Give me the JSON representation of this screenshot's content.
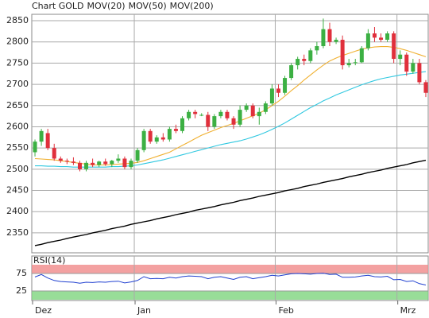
{
  "chart_data": [
    {
      "type": "candlestick",
      "title": "Chart GOLD",
      "title_color": "#d62728",
      "up_color": "#3cb043",
      "down_color": "#e0303c",
      "categories": [
        "Dez",
        null,
        null,
        null,
        null,
        null,
        null,
        null,
        null,
        null,
        null,
        null,
        null,
        null,
        null,
        null,
        "Jan",
        null,
        null,
        null,
        null,
        null,
        null,
        null,
        null,
        null,
        null,
        null,
        null,
        null,
        null,
        null,
        null,
        null,
        null,
        null,
        null,
        null,
        "Feb",
        null,
        null,
        null,
        null,
        null,
        null,
        null,
        null,
        null,
        null,
        null,
        null,
        null,
        null,
        null,
        null,
        null,
        null,
        "Mrz",
        null,
        null,
        null,
        null
      ],
      "open": [
        2540,
        2565,
        2585,
        2550,
        2525,
        2520,
        2518,
        2515,
        2500,
        2515,
        2510,
        2518,
        2512,
        2520,
        2525,
        2505,
        2520,
        2545,
        2590,
        2565,
        2575,
        2570,
        2595,
        2590,
        2620,
        2635,
        2628,
        2628,
        2600,
        2625,
        2635,
        2620,
        2605,
        2640,
        2650,
        2625,
        2635,
        2655,
        2690,
        2680,
        2715,
        2745,
        2760,
        2755,
        2780,
        2790,
        2830,
        2800,
        2805,
        2745,
        2750,
        2752,
        2785,
        2820,
        2810,
        2805,
        2820,
        2760,
        2770,
        2730,
        2750,
        2705
      ],
      "high": [
        2570,
        2595,
        2595,
        2560,
        2530,
        2525,
        2528,
        2520,
        2520,
        2525,
        2520,
        2525,
        2522,
        2535,
        2530,
        2525,
        2550,
        2595,
        2595,
        2580,
        2585,
        2600,
        2605,
        2625,
        2640,
        2640,
        2632,
        2635,
        2630,
        2640,
        2640,
        2625,
        2650,
        2655,
        2655,
        2645,
        2660,
        2700,
        2700,
        2720,
        2750,
        2765,
        2770,
        2785,
        2800,
        2855,
        2845,
        2810,
        2815,
        2760,
        2760,
        2790,
        2830,
        2835,
        2820,
        2825,
        2825,
        2780,
        2775,
        2760,
        2760,
        2710
      ],
      "low": [
        2530,
        2555,
        2545,
        2520,
        2515,
        2512,
        2510,
        2495,
        2495,
        2505,
        2505,
        2508,
        2505,
        2515,
        2500,
        2500,
        2515,
        2540,
        2560,
        2560,
        2565,
        2565,
        2585,
        2585,
        2615,
        2620,
        2625,
        2590,
        2595,
        2620,
        2615,
        2595,
        2600,
        2635,
        2620,
        2605,
        2630,
        2650,
        2670,
        2675,
        2710,
        2735,
        2745,
        2750,
        2770,
        2785,
        2790,
        2795,
        2735,
        2740,
        2745,
        2750,
        2780,
        2800,
        2800,
        2800,
        2750,
        2745,
        2720,
        2725,
        2700,
        2670
      ],
      "close": [
        2565,
        2590,
        2550,
        2525,
        2520,
        2518,
        2515,
        2500,
        2515,
        2510,
        2518,
        2512,
        2520,
        2525,
        2505,
        2520,
        2545,
        2590,
        2565,
        2575,
        2570,
        2595,
        2590,
        2620,
        2635,
        2630,
        2628,
        2600,
        2625,
        2635,
        2620,
        2605,
        2640,
        2650,
        2625,
        2635,
        2655,
        2690,
        2680,
        2715,
        2745,
        2760,
        2755,
        2780,
        2790,
        2830,
        2800,
        2805,
        2745,
        2750,
        2752,
        2785,
        2820,
        2810,
        2805,
        2820,
        2760,
        2770,
        2730,
        2750,
        2705,
        2680
      ],
      "series": [
        {
          "name": "MOV(20)",
          "color": "#f0b030",
          "values": [
            2525,
            2524,
            2523,
            2522,
            2520,
            2518,
            2516,
            2514,
            2512,
            2510,
            2510,
            2510,
            2511,
            2512,
            2513,
            2514,
            2516,
            2520,
            2525,
            2530,
            2535,
            2540,
            2548,
            2556,
            2564,
            2572,
            2580,
            2586,
            2592,
            2598,
            2603,
            2608,
            2614,
            2620,
            2626,
            2632,
            2640,
            2650,
            2660,
            2672,
            2685,
            2697,
            2710,
            2722,
            2734,
            2745,
            2755,
            2762,
            2768,
            2773,
            2778,
            2783,
            2786,
            2788,
            2789,
            2789,
            2787,
            2784,
            2780,
            2775,
            2770,
            2765
          ]
        },
        {
          "name": "MOV(50)",
          "color": "#30c8e0",
          "values": [
            2508,
            2508,
            2507,
            2507,
            2506,
            2506,
            2505,
            2505,
            2505,
            2505,
            2505,
            2505,
            2506,
            2506,
            2507,
            2508,
            2510,
            2513,
            2516,
            2519,
            2522,
            2526,
            2530,
            2534,
            2538,
            2542,
            2546,
            2550,
            2554,
            2558,
            2561,
            2564,
            2567,
            2571,
            2576,
            2581,
            2587,
            2594,
            2601,
            2609,
            2618,
            2627,
            2636,
            2645,
            2653,
            2661,
            2668,
            2675,
            2681,
            2687,
            2693,
            2699,
            2704,
            2709,
            2713,
            2716,
            2719,
            2722,
            2724,
            2726,
            2728,
            2730
          ]
        },
        {
          "name": "MOV(200)",
          "color": "#000000",
          "values": [
            2320,
            2323,
            2327,
            2330,
            2333,
            2337,
            2340,
            2343,
            2346,
            2350,
            2353,
            2356,
            2360,
            2363,
            2366,
            2370,
            2373,
            2376,
            2379,
            2383,
            2386,
            2389,
            2393,
            2396,
            2399,
            2403,
            2406,
            2409,
            2412,
            2416,
            2419,
            2422,
            2426,
            2429,
            2432,
            2436,
            2439,
            2442,
            2445,
            2449,
            2452,
            2455,
            2459,
            2462,
            2465,
            2469,
            2472,
            2475,
            2478,
            2482,
            2485,
            2488,
            2492,
            2495,
            2498,
            2502,
            2505,
            2508,
            2511,
            2515,
            2518,
            2521
          ]
        }
      ],
      "ylim": [
        2303,
        2865
      ],
      "yticks": [
        2350,
        2400,
        2450,
        2500,
        2550,
        2600,
        2650,
        2700,
        2750,
        2800,
        2850
      ],
      "grid": true
    },
    {
      "type": "line",
      "title": "RSI(14)",
      "color": "#2040d0",
      "band_colors": [
        "#f08a8a",
        "#7ed47e"
      ],
      "values": [
        65,
        72,
        62,
        55,
        52,
        51,
        50,
        47,
        50,
        49,
        51,
        50,
        52,
        53,
        48,
        51,
        55,
        66,
        60,
        61,
        60,
        64,
        62,
        66,
        68,
        67,
        66,
        60,
        64,
        66,
        62,
        58,
        64,
        66,
        60,
        63,
        66,
        70,
        68,
        71,
        74,
        75,
        74,
        73,
        75,
        76,
        72,
        73,
        64,
        64,
        65,
        68,
        70,
        66,
        65,
        67,
        57,
        58,
        52,
        54,
        46,
        42
      ],
      "ylim": [
        0,
        100
      ],
      "yticks": [
        25,
        75
      ]
    }
  ]
}
